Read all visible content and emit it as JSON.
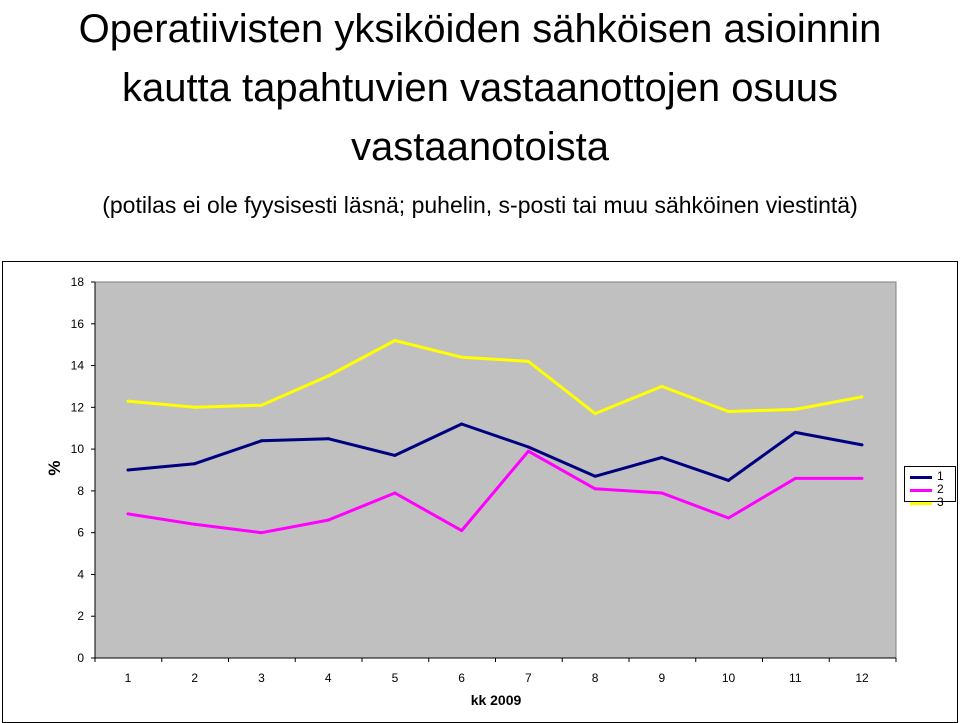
{
  "title_lines": [
    "Operatiivisten yksiköiden sähköisen asioinnin",
    "kautta tapahtuvien vastaanottojen osuus",
    "vastaanotoista"
  ],
  "subtitle": "(potilas ei ole fyysisesti läsnä; puhelin, s-posti tai muu sähköinen viestintä)",
  "chart_data": {
    "type": "line",
    "title": "Operatiivisten yksiköiden sähköisen asioinnin kautta tapahtuvien vastaanottojen osuus vastaanotoista",
    "subtitle": "(potilas ei ole fyysisesti läsnä; puhelin, s-posti tai muu sähköinen viestintä)",
    "xlabel": "kk 2009",
    "ylabel": "%",
    "categories": [
      "1",
      "2",
      "3",
      "4",
      "5",
      "6",
      "7",
      "8",
      "9",
      "10",
      "11",
      "12"
    ],
    "yticks": [
      "0",
      "2",
      "4",
      "6",
      "8",
      "10",
      "12",
      "14",
      "16",
      "18"
    ],
    "ylim": [
      0,
      18
    ],
    "plot_background": "#c0c0c0",
    "grid": false,
    "legend_position": "right",
    "series": [
      {
        "name": "1",
        "color": "#000080",
        "values": [
          9.0,
          9.3,
          10.4,
          10.5,
          9.7,
          11.2,
          10.1,
          8.7,
          9.6,
          8.5,
          10.8,
          10.2
        ]
      },
      {
        "name": "2",
        "color": "#ff00ff",
        "values": [
          6.9,
          6.4,
          6.0,
          6.6,
          7.9,
          6.1,
          9.9,
          8.1,
          7.9,
          6.7,
          8.6,
          8.6
        ]
      },
      {
        "name": "3",
        "color": "#ffff00",
        "values": [
          12.3,
          12.0,
          12.1,
          13.5,
          15.2,
          14.4,
          14.2,
          11.7,
          13.0,
          11.8,
          11.9,
          12.5
        ]
      }
    ]
  }
}
